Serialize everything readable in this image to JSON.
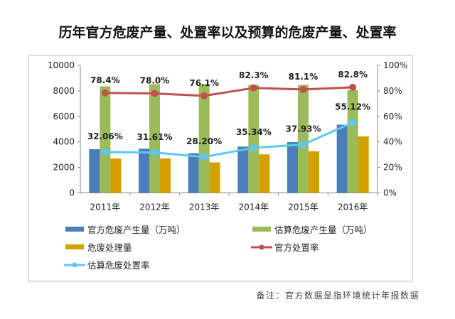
{
  "chart_data": {
    "type": "bar",
    "title": "历年官方危废产量、处置率以及预算的危废产量、处置率",
    "categories": [
      "2011年",
      "2012年",
      "2013年",
      "2014年",
      "2015年",
      "2016年"
    ],
    "y_left": {
      "ylim": [
        0,
        10000
      ],
      "ticks": [
        "0",
        "2000",
        "4000",
        "6000",
        "8000",
        "10000"
      ]
    },
    "y_right": {
      "ylim": [
        0,
        100
      ],
      "ticks": [
        "0%",
        "20%",
        "40%",
        "60%",
        "80%",
        "100%"
      ]
    },
    "bar_series": [
      {
        "name": "官方危废产生量（万吨）",
        "color": "#4a7ebb",
        "values": [
          3430,
          3465,
          3110,
          3630,
          3980,
          5350
        ]
      },
      {
        "name": "估算危废产生量（万吨）",
        "color": "#9bbb59",
        "values": [
          8350,
          8530,
          8530,
          8470,
          8470,
          8050
        ]
      },
      {
        "name": "危废处理量",
        "color": "#d4a000",
        "values": [
          2700,
          2700,
          2390,
          3020,
          3260,
          4430
        ]
      }
    ],
    "line_series": [
      {
        "name": "官方处置率",
        "color": "#c0504d",
        "values": [
          78.4,
          78.0,
          76.1,
          82.3,
          81.1,
          82.8
        ],
        "labels": [
          "78.4%",
          "78.0%",
          "76.1%",
          "82.3%",
          "81.1%",
          "82.8%"
        ]
      },
      {
        "name": "估算危废处置率",
        "color": "#5bc8f5",
        "values": [
          32.06,
          31.61,
          28.2,
          35.34,
          37.93,
          55.12
        ],
        "labels": [
          "32.06%",
          "31.61%",
          "28.20%",
          "35.34%",
          "37.93%",
          "55.12%"
        ]
      }
    ],
    "grid": false,
    "legend_placement": "bottom"
  },
  "note": "备注：官方数据是指环境统计年报数据"
}
